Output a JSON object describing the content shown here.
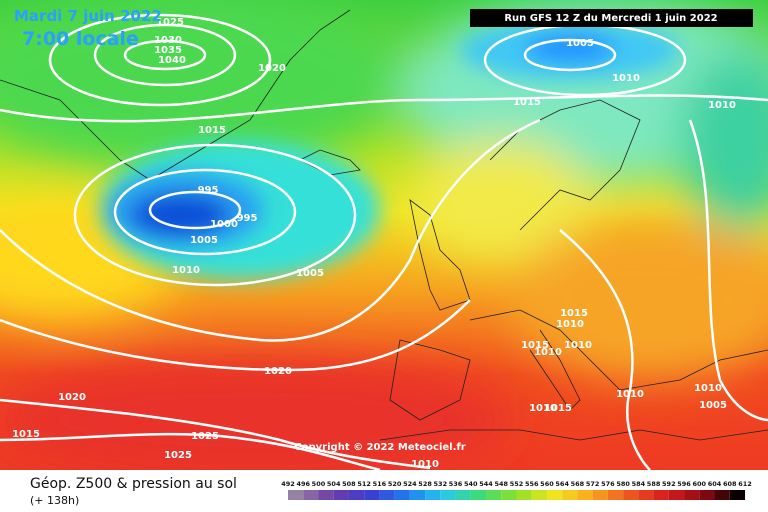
{
  "header": {
    "date": "Mardi 7 juin 2022",
    "time": "7:00 locale",
    "run": "Run GFS 12 Z du Mercredi 1 juin 2022"
  },
  "copyright": "Copyright © 2022 Meteociel.fr",
  "footer": {
    "title": "Géop. Z500 & pression au sol",
    "lead": "(+ 138h)",
    "scale": [
      492,
      496,
      500,
      504,
      508,
      512,
      516,
      520,
      524,
      528,
      532,
      536,
      540,
      544,
      548,
      552,
      556,
      560,
      564,
      568,
      572,
      576,
      580,
      584,
      588,
      592,
      596,
      600,
      604,
      608,
      612
    ]
  },
  "isobar_labels": [
    1025,
    1030,
    1035,
    1040,
    1020,
    1015,
    995,
    1000,
    995,
    1005,
    1010,
    1005,
    1005,
    1010,
    1015,
    1010,
    1015,
    1010,
    1015,
    1010,
    1010,
    1020,
    1020,
    1015,
    1025,
    1025,
    1010,
    1015,
    1010,
    1010,
    1005,
    1010
  ]
}
